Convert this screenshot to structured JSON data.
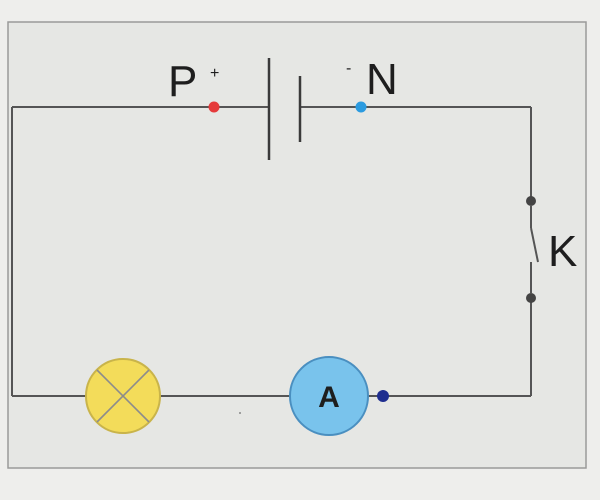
{
  "diagram": {
    "battery": {
      "positive_label": "P",
      "positive_sign": "+",
      "negative_label": "N",
      "negative_sign": "-"
    },
    "switch": {
      "label": "K"
    },
    "ammeter": {
      "label": "A"
    },
    "colors": {
      "background": "#eeeeec",
      "panel": "#e6e7e4",
      "wire": "#555555",
      "positive_terminal": "#e53b3b",
      "negative_terminal": "#2b9be0",
      "switch_terminal": "#444444",
      "lamp_fill": "#f3dc5a",
      "lamp_stroke": "#c9b44a",
      "ammeter_fill": "#79c3ec",
      "ammeter_stroke": "#4a8fc0",
      "ammeter_terminal": "#1f2e8f"
    }
  }
}
